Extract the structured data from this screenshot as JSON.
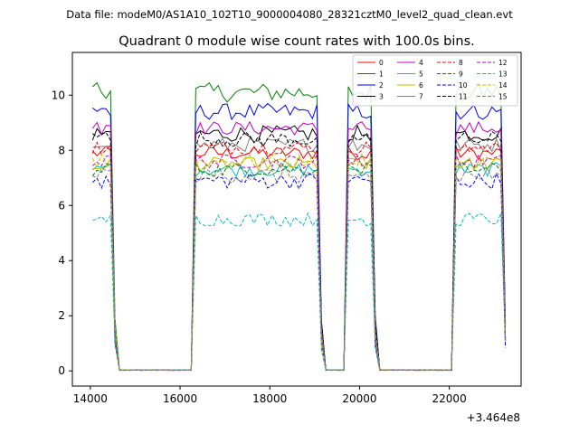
{
  "chart_data": {
    "type": "line",
    "suptitle": "Data file: modeM0/AS1A10_102T10_9000004080_28321cztM0_level2_quad_clean.evt",
    "title": "Quadrant 0 module wise count rates with 100.0s bins.",
    "xlabel": "",
    "ylabel": "",
    "x_offset_label": "+3.464e8",
    "xlim": [
      13600,
      23600
    ],
    "ylim": [
      -0.55,
      11.55
    ],
    "xticks": [
      14000,
      16000,
      18000,
      20000,
      22000
    ],
    "yticks": [
      0,
      2,
      4,
      6,
      8,
      10
    ],
    "legend_position": "top-right",
    "segments": [
      {
        "start": 14050,
        "end": 14450
      },
      {
        "start": 16350,
        "end": 19050
      },
      {
        "start": 19750,
        "end": 20250
      },
      {
        "start": 22150,
        "end": 23150
      }
    ],
    "segments_note": "Count rates drop steeply to 0 at each segment's end and rise steeply at the next segment's start; the gaps between segments have 0 counts.",
    "x_start": 14050,
    "x_end": 23250,
    "series": [
      {
        "name": "0",
        "color": "#ff0000",
        "dash": "solid",
        "level": 7.9,
        "noise": 0.25
      },
      {
        "name": "1",
        "color": "#008000",
        "dash": "solid",
        "level": 10.1,
        "noise": 0.35
      },
      {
        "name": "2",
        "color": "#0000ff",
        "dash": "solid",
        "level": 9.4,
        "noise": 0.3
      },
      {
        "name": "3",
        "color": "#000000",
        "dash": "solid",
        "level": 8.6,
        "noise": 0.3
      },
      {
        "name": "4",
        "color": "#bf00bf",
        "dash": "solid",
        "level": 8.8,
        "noise": 0.25
      },
      {
        "name": "5",
        "color": "#00bfbf",
        "dash": "solid",
        "level": 7.3,
        "noise": 0.25
      },
      {
        "name": "6",
        "color": "#bfbf00",
        "dash": "solid",
        "level": 7.5,
        "noise": 0.25
      },
      {
        "name": "7",
        "color": "#808080",
        "dash": "solid",
        "level": 8.2,
        "noise": 0.25
      },
      {
        "name": "8",
        "color": "#ff0000",
        "dash": "dashed",
        "level": 8.1,
        "noise": 0.25
      },
      {
        "name": "9",
        "color": "#008000",
        "dash": "dashed",
        "level": 7.3,
        "noise": 0.25
      },
      {
        "name": "10",
        "color": "#0000ff",
        "dash": "dashed",
        "level": 6.9,
        "noise": 0.3
      },
      {
        "name": "11",
        "color": "#000000",
        "dash": "dashed",
        "level": 8.4,
        "noise": 0.3
      },
      {
        "name": "12",
        "color": "#bf00bf",
        "dash": "dashed",
        "level": 7.6,
        "noise": 0.25
      },
      {
        "name": "13",
        "color": "#00bfbf",
        "dash": "dashed",
        "level": 5.5,
        "noise": 0.25
      },
      {
        "name": "14",
        "color": "#bfbf00",
        "dash": "dashed",
        "level": 7.6,
        "noise": 0.25
      },
      {
        "name": "15",
        "color": "#808080",
        "dash": "dashed",
        "level": 7.1,
        "noise": 0.3
      }
    ]
  }
}
